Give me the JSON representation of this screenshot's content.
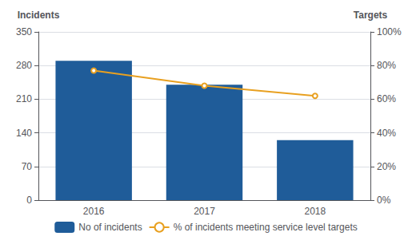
{
  "chart_data": {
    "type": "bar",
    "categories": [
      "2016",
      "2017",
      "2018"
    ],
    "series": [
      {
        "name": "No of incidents",
        "type": "bar",
        "color": "#1F5C99",
        "values": [
          290,
          240,
          125
        ]
      },
      {
        "name": "% of incidents meeting service level targets",
        "type": "line",
        "color": "#E8A020",
        "axis": "y2",
        "values": [
          0.77,
          0.68,
          0.62
        ]
      }
    ],
    "ylabel": "Incidents",
    "y2label": "Targets",
    "ylim": [
      0,
      350
    ],
    "yticks": [
      0,
      70,
      140,
      210,
      280,
      350
    ],
    "y2lim": [
      0,
      1.0
    ],
    "y2ticks": [
      {
        "value": 0.0,
        "label": "0%"
      },
      {
        "value": 0.2,
        "label": "20%"
      },
      {
        "value": 0.4,
        "label": "40%"
      },
      {
        "value": 0.6,
        "label": "60%"
      },
      {
        "value": 0.8,
        "label": "80%"
      },
      {
        "value": 1.0,
        "label": "100%"
      }
    ],
    "grid": true,
    "legend": "bottom"
  }
}
